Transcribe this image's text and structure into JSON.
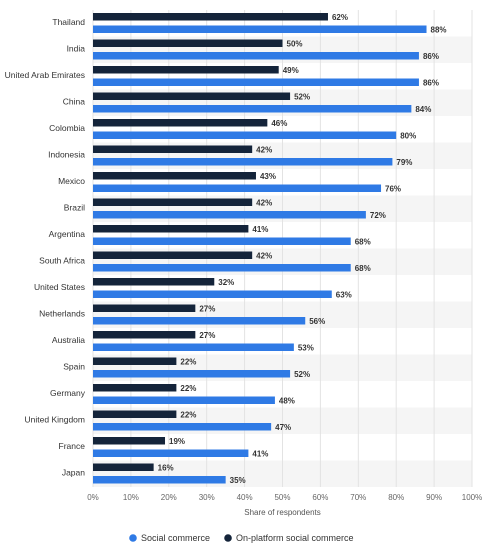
{
  "chart_data": {
    "type": "bar",
    "orientation": "horizontal",
    "categories": [
      "Thailand",
      "India",
      "United Arab Emirates",
      "China",
      "Colombia",
      "Indonesia",
      "Mexico",
      "Brazil",
      "Argentina",
      "South Africa",
      "United States",
      "Netherlands",
      "Australia",
      "Spain",
      "Germany",
      "United Kingdom",
      "France",
      "Japan"
    ],
    "series": [
      {
        "name": "On-platform social commerce",
        "color": "#14243a",
        "values": [
          62,
          50,
          49,
          52,
          46,
          42,
          43,
          42,
          41,
          42,
          32,
          27,
          27,
          22,
          22,
          22,
          19,
          16
        ]
      },
      {
        "name": "Social commerce",
        "color": "#2f7ae5",
        "values": [
          88,
          86,
          86,
          84,
          80,
          79,
          76,
          72,
          68,
          68,
          63,
          56,
          53,
          52,
          48,
          47,
          41,
          35
        ]
      }
    ],
    "xlabel": "Share of respondents",
    "xlim": [
      0,
      100
    ],
    "xticks": [
      "0%",
      "10%",
      "20%",
      "30%",
      "40%",
      "50%",
      "60%",
      "70%",
      "80%",
      "90%",
      "100%"
    ],
    "value_suffix": "%",
    "grid": true,
    "legend": {
      "position": "bottom-center",
      "items": [
        {
          "label": "Social commerce",
          "color": "#2f7ae5"
        },
        {
          "label": "On-platform social commerce",
          "color": "#14243a"
        }
      ]
    }
  }
}
